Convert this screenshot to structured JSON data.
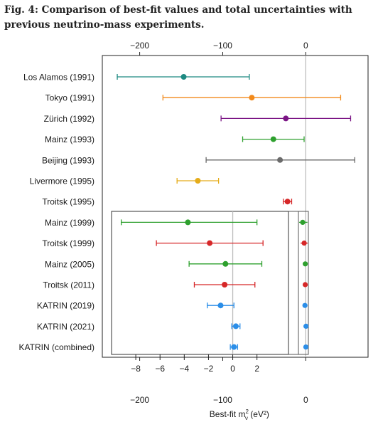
{
  "figure": {
    "title": "Fig. 4: Comparison of best-fit values and total uncertainties with previous neutrino-mass experiments."
  },
  "chart_data": {
    "type": "scatter",
    "subtype": "forest-plot-with-inset",
    "xlabel": "Best-fit m²ν (eV²)",
    "xlabel_main": "Best-fit m",
    "xlabel_sup": "2",
    "xlabel_sub": "ν",
    "xlabel_unit": " (eV²)",
    "xlim": [
      -245,
      75
    ],
    "xticks": [
      -200,
      -100,
      0
    ],
    "xtick_labels": [
      "−200",
      "−100",
      "0"
    ],
    "inset_xlim": [
      -10,
      4.6
    ],
    "inset_xticks": [
      -8,
      -6,
      -4,
      -2,
      0,
      2
    ],
    "inset_xtick_labels": [
      "−8",
      "−6",
      "−4",
      "−2",
      "0",
      "2"
    ],
    "grid": false,
    "reference_line": 0,
    "experiments": [
      {
        "label": "Los Alamos (1991)",
        "value": -147,
        "lo": -227,
        "hi": -68,
        "color": "#1e8a82",
        "in_inset": false
      },
      {
        "label": "Tokyo (1991)",
        "value": -65,
        "lo": -172,
        "hi": 42,
        "color": "#f28a1b",
        "in_inset": false
      },
      {
        "label": "Zürich (1992)",
        "value": -24,
        "lo": -102,
        "hi": 54,
        "color": "#7b1585",
        "in_inset": false
      },
      {
        "label": "Mainz (1993)",
        "value": -39,
        "lo": -76,
        "hi": -2,
        "color": "#2ea02e",
        "in_inset": false
      },
      {
        "label": "Beijing (1993)",
        "value": -31,
        "lo": -120,
        "hi": 59,
        "color": "#6b6b6b",
        "in_inset": false
      },
      {
        "label": "Livermore (1995)",
        "value": -130,
        "lo": -155,
        "hi": -105,
        "color": "#e5ac1a",
        "in_inset": false
      },
      {
        "label": "Troitsk (1995)",
        "value": -22,
        "lo": -27,
        "hi": -17,
        "color": "#d62728",
        "in_inset": false
      },
      {
        "label": "Mainz (1999)",
        "value": -3.7,
        "lo": -9.2,
        "hi": 2.0,
        "color": "#2ea02e",
        "in_inset": true
      },
      {
        "label": "Troitsk (1999)",
        "value": -1.9,
        "lo": -6.3,
        "hi": 2.5,
        "color": "#d62728",
        "in_inset": true
      },
      {
        "label": "Mainz (2005)",
        "value": -0.6,
        "lo": -3.6,
        "hi": 2.4,
        "color": "#2ea02e",
        "in_inset": true
      },
      {
        "label": "Troitsk (2011)",
        "value": -0.67,
        "lo": -3.17,
        "hi": 1.83,
        "color": "#d62728",
        "in_inset": true
      },
      {
        "label": "KATRIN (2019)",
        "value": -1.0,
        "lo": -2.1,
        "hi": 0.1,
        "color": "#2b8ee8",
        "in_inset": true
      },
      {
        "label": "KATRIN (2021)",
        "value": 0.26,
        "lo": -0.08,
        "hi": 0.6,
        "color": "#2b8ee8",
        "in_inset": true
      },
      {
        "label": "KATRIN (combined)",
        "value": 0.1,
        "lo": -0.2,
        "hi": 0.4,
        "color": "#2b8ee8",
        "in_inset": true
      }
    ]
  }
}
